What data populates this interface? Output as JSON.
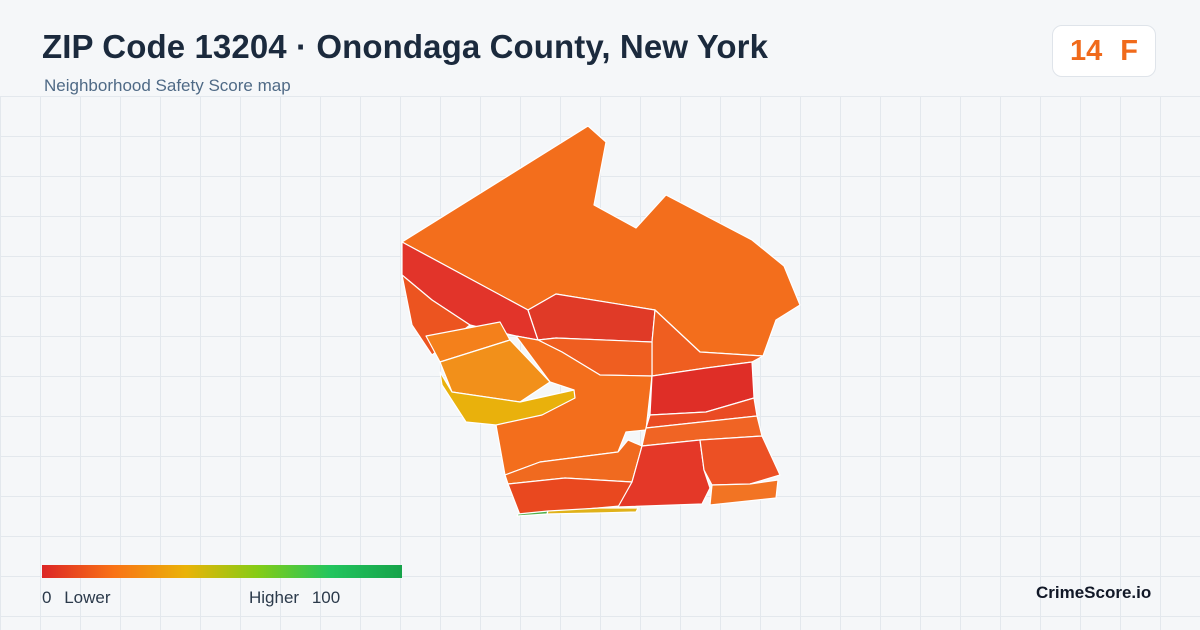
{
  "header": {
    "title": "ZIP Code 13204 · Onondaga County, New York",
    "subtitle": "Neighborhood Safety Score map"
  },
  "score_badge": {
    "score": "14",
    "grade": "F",
    "color": "#f06a1b"
  },
  "legend": {
    "low_value": "0",
    "low_label": "Lower",
    "high_label": "Higher",
    "high_value": "100",
    "gradient_colors": [
      "#dc2626",
      "#f97316",
      "#eab308",
      "#84cc16",
      "#22c55e",
      "#16a34a"
    ]
  },
  "brand": "CrimeScore.io",
  "map_regions": [
    {
      "name": "north",
      "fill": "#f36e1c"
    },
    {
      "name": "west-diagonal",
      "fill": "#e2342a"
    },
    {
      "name": "far-west",
      "fill": "#ec5420"
    },
    {
      "name": "upper-central",
      "fill": "#e03a27"
    },
    {
      "name": "northeast-lower",
      "fill": "#ef5e20"
    },
    {
      "name": "central-band",
      "fill": "#ef5e20"
    },
    {
      "name": "central-south",
      "fill": "#f36e1c"
    },
    {
      "name": "west-orange-strip",
      "fill": "#f4801b"
    },
    {
      "name": "west-amber",
      "fill": "#f2901a"
    },
    {
      "name": "west-yellow",
      "fill": "#e9b10c"
    },
    {
      "name": "east-red",
      "fill": "#df2e27"
    },
    {
      "name": "east-band-1",
      "fill": "#ea4b23"
    },
    {
      "name": "east-band-2",
      "fill": "#f06424"
    },
    {
      "name": "south-west-1",
      "fill": "#f06a1f"
    },
    {
      "name": "south-west-2",
      "fill": "#e9481f"
    },
    {
      "name": "south-mid",
      "fill": "#e43828"
    },
    {
      "name": "south-east",
      "fill": "#ec5024"
    },
    {
      "name": "south-east-bottom",
      "fill": "#f27423"
    },
    {
      "name": "southern-tip-green",
      "fill": "#4fae4a"
    },
    {
      "name": "southern-tip-yellow",
      "fill": "#e0b21a"
    }
  ]
}
